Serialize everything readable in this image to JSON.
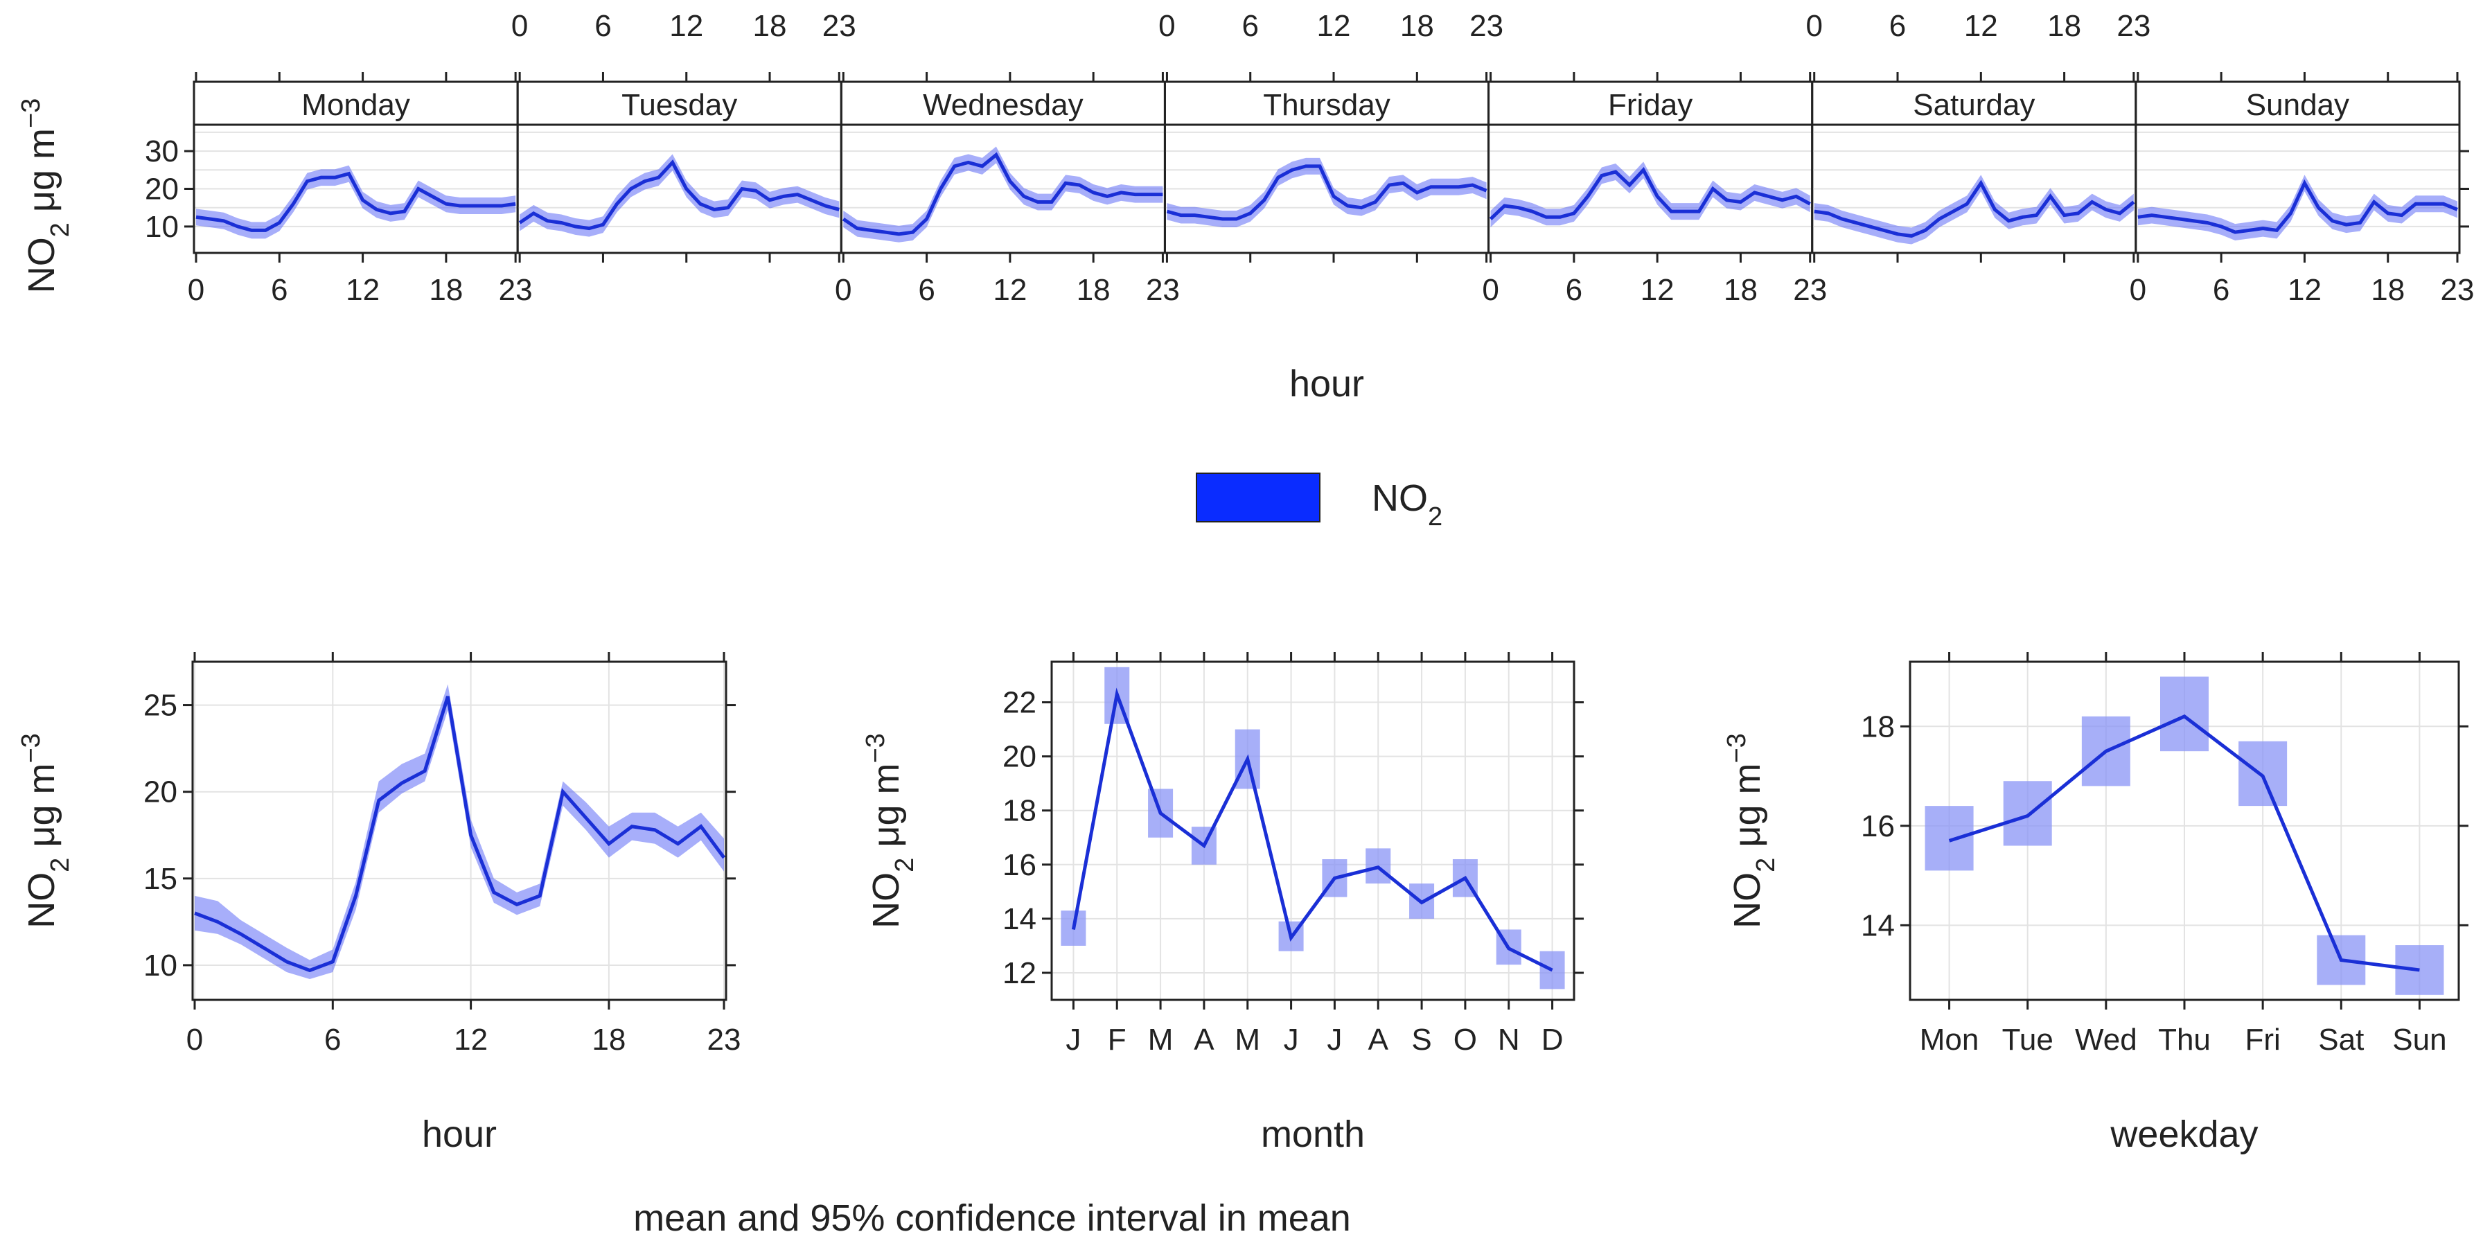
{
  "colors": {
    "line": "#1a2fd6",
    "band": "#4f5ef5",
    "legend": "#0a2cff",
    "box": "#8a94f5"
  },
  "legend": {
    "label": "NO",
    "subscript": "2"
  },
  "caption": "mean and 95% confidence interval in mean",
  "chart_data": [
    {
      "id": "hour_weekday",
      "type": "line",
      "title": "",
      "xlabel": "hour",
      "ylabel": {
        "base": "NO",
        "sub": "2",
        "units": " μg m",
        "sup": "−3"
      },
      "ylim": [
        3,
        37
      ],
      "yticks": [
        10,
        20,
        30
      ],
      "xlim": [
        0,
        23
      ],
      "xticks": [
        "0",
        "6",
        "12",
        "18",
        "23"
      ],
      "panels": [
        {
          "label": "Monday",
          "mean": [
            12.5,
            12,
            11.5,
            10,
            9,
            9,
            11,
            16,
            22,
            23,
            23,
            24,
            17,
            14.5,
            13.5,
            14,
            20,
            18,
            16,
            15.5,
            15.5,
            15.5,
            15.5,
            16
          ]
        },
        {
          "label": "Tuesday",
          "mean": [
            11,
            13.5,
            11.5,
            11,
            10,
            9.5,
            10.5,
            16,
            20,
            22,
            23,
            27,
            20,
            16,
            14.5,
            15,
            20,
            19.5,
            17,
            18,
            18.5,
            17,
            15.5,
            14.5
          ]
        },
        {
          "label": "Wednesday",
          "mean": [
            12,
            9.5,
            9,
            8.5,
            8,
            8.5,
            12,
            20,
            26,
            27,
            26,
            29,
            22,
            18,
            16.5,
            16.5,
            21.5,
            21,
            19,
            18,
            19,
            18.5,
            18.5,
            18.5
          ]
        },
        {
          "label": "Thursday",
          "mean": [
            14,
            13,
            13,
            12.5,
            12,
            12,
            13.5,
            17,
            23,
            25,
            26,
            26,
            18,
            15.5,
            15,
            16.5,
            21,
            21.5,
            19,
            20.5,
            20.5,
            20.5,
            21,
            19.5
          ]
        },
        {
          "label": "Friday",
          "mean": [
            12,
            15.5,
            15,
            14,
            12.5,
            12.5,
            13.5,
            18,
            23.5,
            24.5,
            21,
            25,
            18,
            14,
            14,
            14,
            20,
            17,
            16.5,
            19,
            18,
            17,
            18,
            16
          ]
        },
        {
          "label": "Saturday",
          "mean": [
            14,
            13.5,
            12,
            11,
            10,
            9,
            8,
            7.5,
            9,
            12,
            14,
            16,
            21.5,
            14.5,
            11.5,
            12.5,
            13,
            18,
            13,
            13.5,
            16.5,
            14.5,
            13.5,
            16.5
          ]
        },
        {
          "label": "Sunday",
          "mean": [
            12.5,
            13,
            12.5,
            12,
            11.5,
            11,
            10,
            8.5,
            9,
            9.5,
            9,
            13.5,
            21.5,
            15,
            11.5,
            10.5,
            11,
            16.5,
            13.5,
            13,
            16,
            16,
            16,
            14.5
          ]
        }
      ]
    },
    {
      "id": "hour",
      "type": "line",
      "title": "",
      "xlabel": "hour",
      "ylabel": {
        "base": "NO",
        "sub": "2",
        "units": " μg m",
        "sup": "−3"
      },
      "ylim": [
        8,
        27.5
      ],
      "yticks": [
        10,
        15,
        20,
        25
      ],
      "xlim": [
        0,
        23
      ],
      "xticks": [
        "0",
        "6",
        "12",
        "18",
        "23"
      ],
      "x": [
        0,
        1,
        2,
        3,
        4,
        5,
        6,
        7,
        8,
        9,
        10,
        11,
        12,
        13,
        14,
        15,
        16,
        17,
        18,
        19,
        20,
        21,
        22,
        23
      ],
      "mean": [
        13,
        12.5,
        11.8,
        11,
        10.2,
        9.7,
        10.2,
        14,
        19.5,
        20.5,
        21.2,
        25.5,
        17.5,
        14.2,
        13.5,
        14,
        20,
        18.5,
        17,
        18,
        17.8,
        17,
        18,
        16.2
      ],
      "lower": [
        12,
        11.8,
        11.2,
        10.4,
        9.6,
        9.2,
        9.6,
        13.2,
        18.8,
        19.9,
        20.6,
        24.7,
        16.8,
        13.6,
        12.9,
        13.4,
        19.2,
        17.8,
        16.2,
        17.2,
        17,
        16.2,
        17.2,
        15.4
      ],
      "upper": [
        14,
        13.7,
        12.6,
        11.8,
        11,
        10.3,
        10.9,
        14.8,
        20.6,
        21.6,
        22.2,
        26.2,
        18.4,
        15,
        14.2,
        14.7,
        20.6,
        19.4,
        18,
        18.8,
        18.8,
        18,
        18.8,
        17.3
      ]
    },
    {
      "id": "month",
      "type": "line",
      "title": "",
      "xlabel": "month",
      "ylabel": {
        "base": "NO",
        "sub": "2",
        "units": " μg m",
        "sup": "−3"
      },
      "ylim": [
        11,
        23.5
      ],
      "yticks": [
        12,
        14,
        16,
        18,
        20,
        22
      ],
      "categories": [
        "J",
        "F",
        "M",
        "A",
        "M",
        "J",
        "J",
        "A",
        "S",
        "O",
        "N",
        "D"
      ],
      "mean": [
        13.6,
        22.3,
        17.9,
        16.7,
        19.9,
        13.3,
        15.5,
        15.9,
        14.6,
        15.5,
        12.9,
        12.1
      ],
      "lower": [
        13,
        21.2,
        17,
        16,
        18.8,
        12.8,
        14.8,
        15.3,
        14,
        14.8,
        12.3,
        11.4
      ],
      "upper": [
        14.3,
        23.3,
        18.8,
        17.4,
        21,
        13.9,
        16.2,
        16.6,
        15.3,
        16.2,
        13.6,
        12.8
      ]
    },
    {
      "id": "weekday",
      "type": "line",
      "title": "",
      "xlabel": "weekday",
      "ylabel": {
        "base": "NO",
        "sub": "2",
        "units": " μg m",
        "sup": "−3"
      },
      "ylim": [
        12.5,
        19.3
      ],
      "yticks": [
        14,
        16,
        18
      ],
      "categories": [
        "Mon",
        "Tue",
        "Wed",
        "Thu",
        "Fri",
        "Sat",
        "Sun"
      ],
      "mean": [
        15.7,
        16.2,
        17.5,
        18.2,
        17,
        13.3,
        13.1
      ],
      "lower": [
        15.1,
        15.6,
        16.8,
        17.5,
        16.4,
        12.8,
        12.6
      ],
      "upper": [
        16.4,
        16.9,
        18.2,
        19,
        17.7,
        13.8,
        13.6
      ]
    }
  ]
}
